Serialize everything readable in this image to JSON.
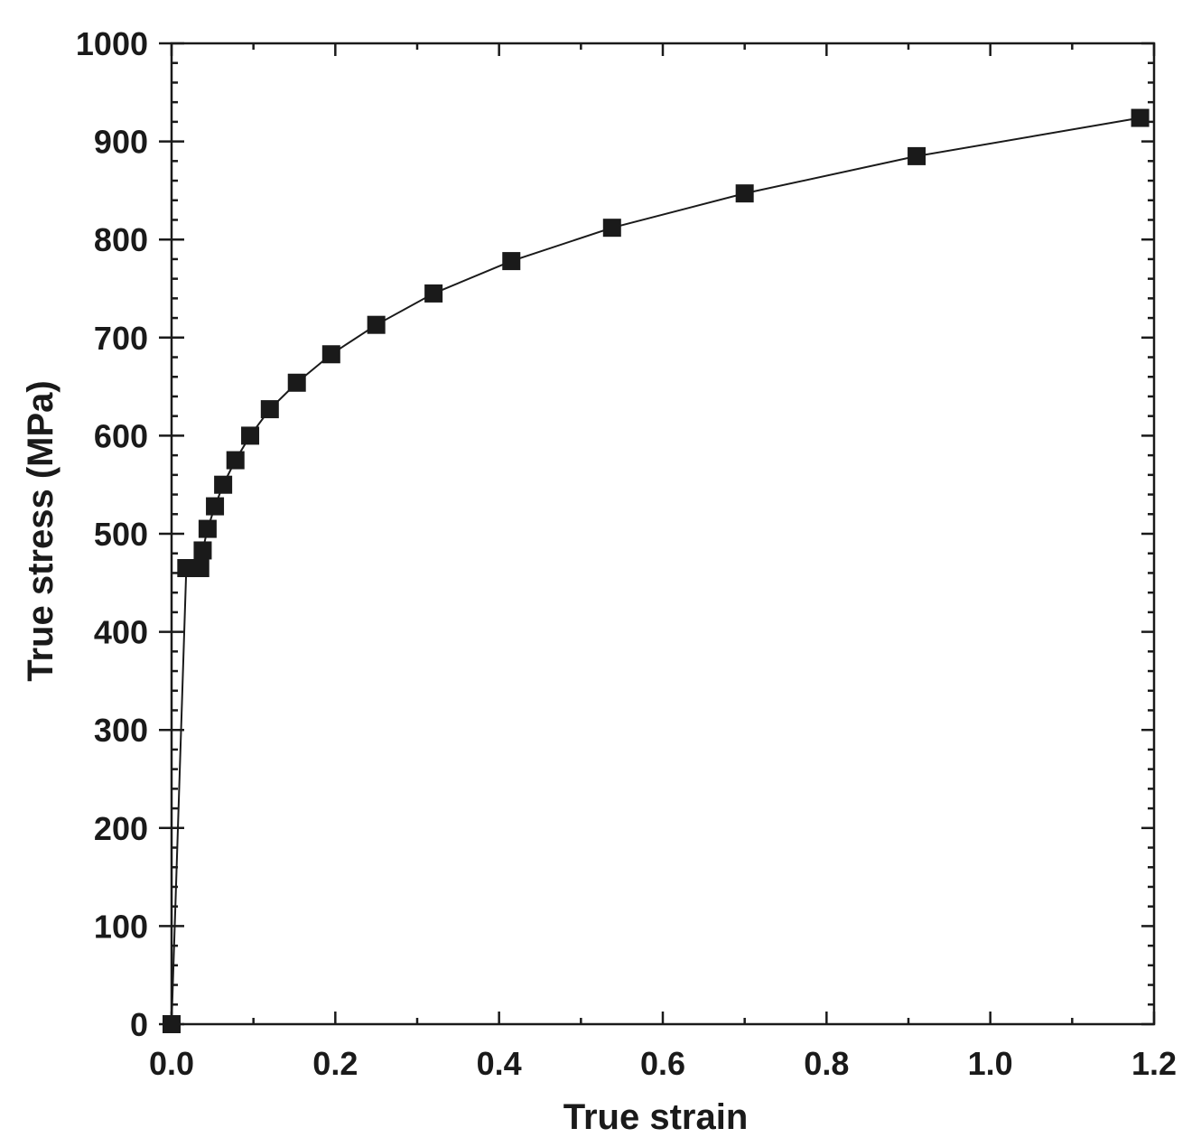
{
  "chart_data": {
    "type": "line",
    "title": "",
    "xlabel": "True strain",
    "ylabel": "True stress (MPa)",
    "xlim": [
      0,
      1.2
    ],
    "ylim": [
      0,
      1000
    ],
    "x_major_ticks": [
      0.0,
      0.2,
      0.4,
      0.6,
      0.8,
      1.0,
      1.2
    ],
    "x_tick_labels": [
      "0.0",
      "0.2",
      "0.4",
      "0.6",
      "0.8",
      "1.0",
      "1.2"
    ],
    "x_minor_step": 0.1,
    "y_major_ticks": [
      0,
      100,
      200,
      300,
      400,
      500,
      600,
      700,
      800,
      900,
      1000
    ],
    "y_tick_labels": [
      "0",
      "100",
      "200",
      "300",
      "400",
      "500",
      "600",
      "700",
      "800",
      "900",
      "1000"
    ],
    "y_minor_step": 20,
    "grid": false,
    "legend": "none",
    "marker": "square",
    "color": "#1a1a1a",
    "series": [
      {
        "x": [
          0.0,
          0.018,
          0.035,
          0.038,
          0.044,
          0.053,
          0.063,
          0.078,
          0.096,
          0.12,
          0.153,
          0.195,
          0.25,
          0.32,
          0.415,
          0.538,
          0.7,
          0.91,
          1.183
        ],
        "y": [
          0,
          465,
          465,
          483,
          505,
          528,
          550,
          575,
          600,
          627,
          654,
          683,
          713,
          745,
          778,
          812,
          847,
          885,
          924
        ]
      }
    ]
  }
}
